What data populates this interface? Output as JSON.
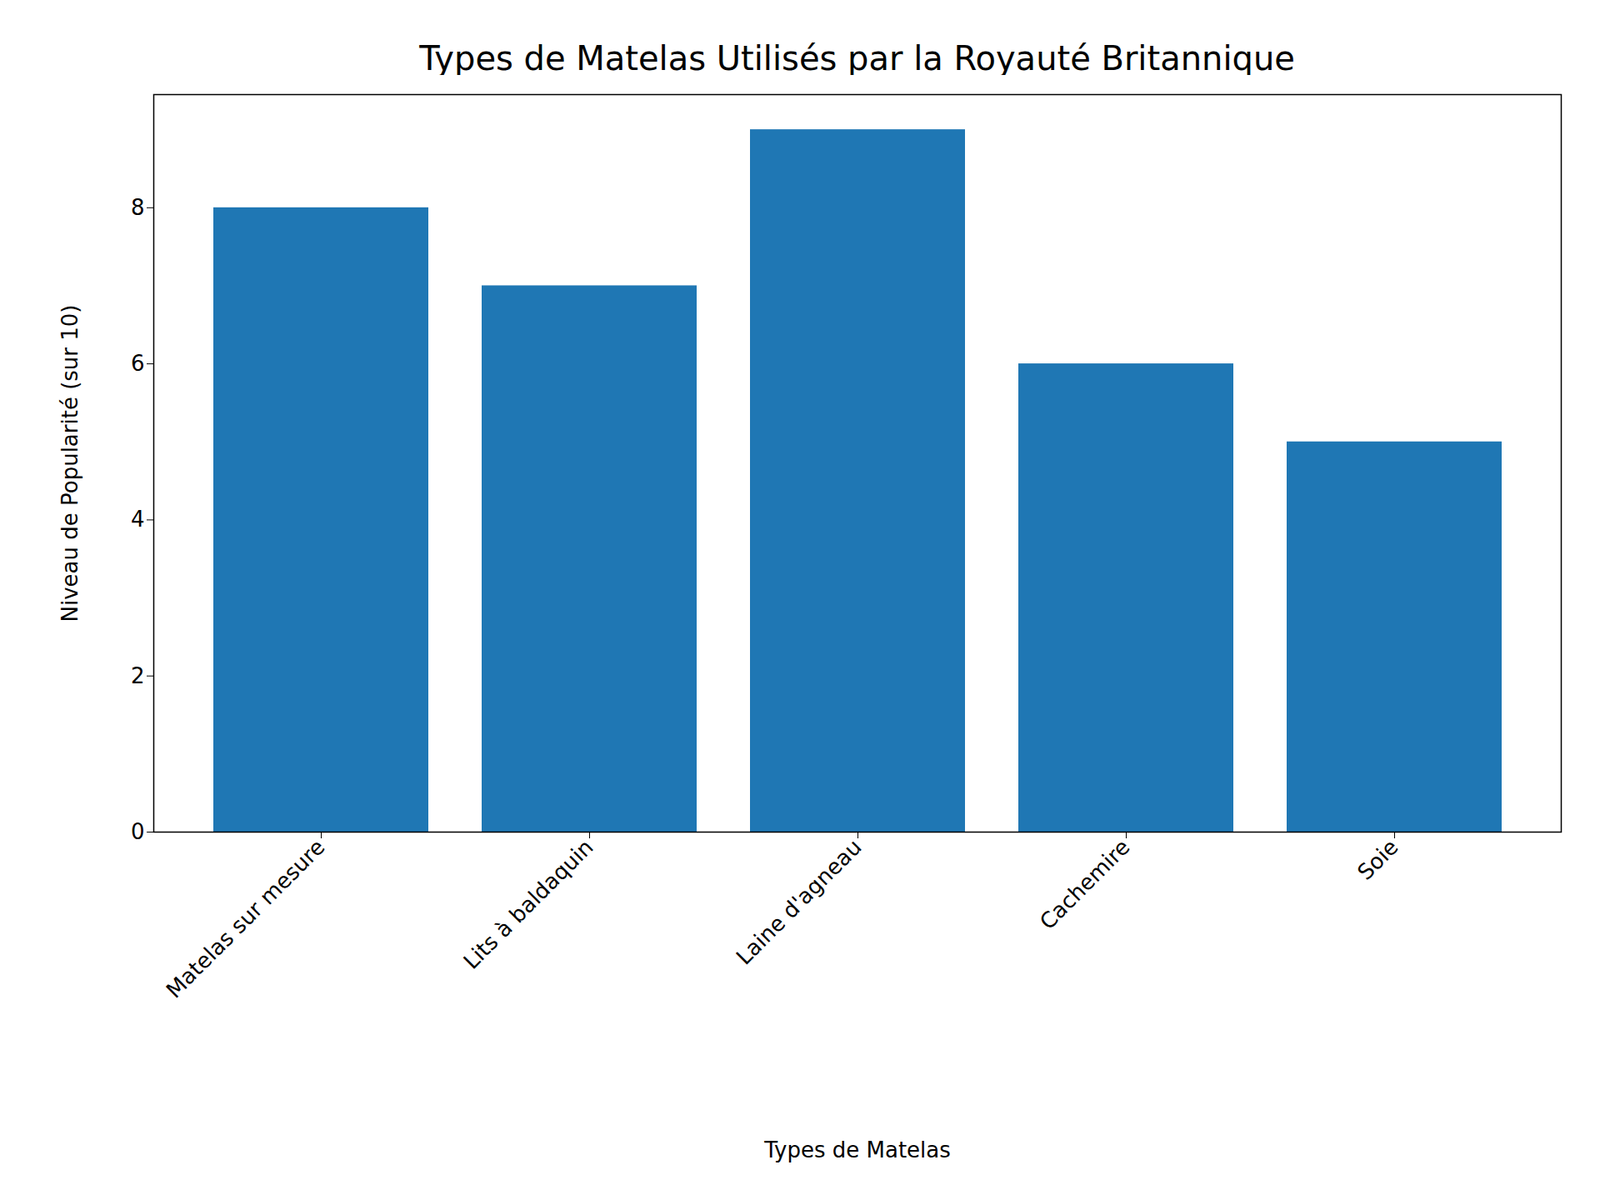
{
  "chart_data": {
    "type": "bar",
    "title": "Types de Matelas Utilisés par la Royauté Britannique",
    "x_label": "Types de Matelas",
    "y_label": "Niveau de Popularité (sur 10)",
    "categories": [
      "Matelas sur mesure",
      "Lits à baldaquin",
      "Laine d'agneau",
      "Cachemire",
      "Soie"
    ],
    "values": [
      8,
      7,
      9,
      6,
      5
    ],
    "color": "#1f77b4",
    "ylim": [
      0,
      9.45
    ],
    "yticks": [
      0,
      2,
      4,
      6,
      8
    ],
    "grid": false
  }
}
